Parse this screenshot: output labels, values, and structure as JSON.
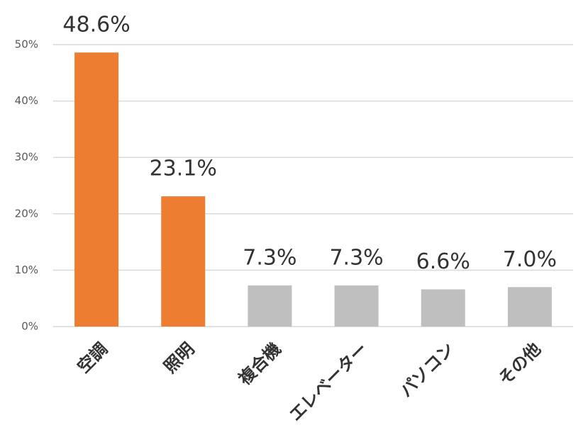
{
  "chart_data": {
    "type": "bar",
    "categories": [
      "空調",
      "照明",
      "複合機",
      "エレベーター",
      "パソコン",
      "その他"
    ],
    "values": [
      48.6,
      23.1,
      7.3,
      7.3,
      6.6,
      7.0
    ],
    "value_labels": [
      "48.6%",
      "23.1%",
      "7.3%",
      "7.3%",
      "6.6%",
      "7.0%"
    ],
    "colors": [
      "#ed7d31",
      "#ed7d31",
      "#bfbfbf",
      "#bfbfbf",
      "#bfbfbf",
      "#bfbfbf"
    ],
    "ylim": [
      0,
      50
    ],
    "yticks": [
      {
        "value": 0,
        "label": "0%"
      },
      {
        "value": 10,
        "label": "10%"
      },
      {
        "value": 20,
        "label": "20%"
      },
      {
        "value": 30,
        "label": "30%"
      },
      {
        "value": 40,
        "label": "40%"
      },
      {
        "value": 50,
        "label": "50%"
      }
    ],
    "grid": true
  }
}
